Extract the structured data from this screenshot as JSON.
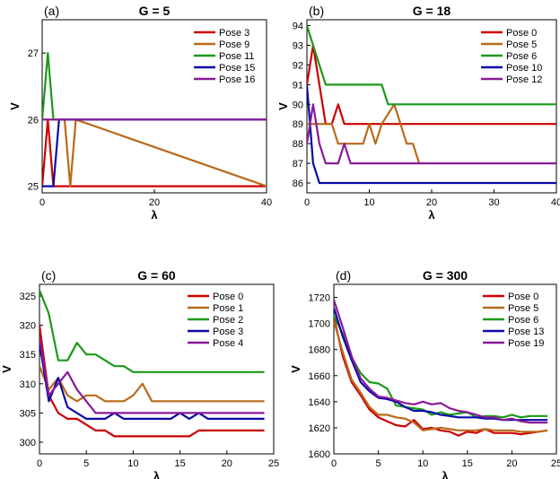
{
  "chart_data": [
    {
      "type": "line",
      "panel_label": "(a)",
      "title": "G = 5",
      "xlabel": "λ",
      "ylabel": "V",
      "xlim": [
        0,
        40
      ],
      "ylim": [
        24.9,
        27.5
      ],
      "xticks": [
        0,
        20,
        40
      ],
      "yticks": [
        25,
        26,
        27
      ],
      "legend_position": "top-right",
      "series": [
        {
          "name": "Pose 3",
          "color": "#cc0000",
          "x": [
            0,
            1,
            2,
            40
          ],
          "y": [
            25,
            26,
            25,
            25
          ]
        },
        {
          "name": "Pose 9",
          "color": "#b86a1a",
          "x": [
            0,
            4,
            5,
            6,
            40
          ],
          "y": [
            26,
            26,
            25,
            26,
            25
          ]
        },
        {
          "name": "Pose 11",
          "color": "#1a9a1a",
          "x": [
            0,
            1,
            2,
            40
          ],
          "y": [
            26,
            27,
            26,
            26
          ]
        },
        {
          "name": "Pose 15",
          "color": "#0a0aa8",
          "x": [
            0,
            2,
            3,
            40
          ],
          "y": [
            25,
            25,
            26,
            26
          ]
        },
        {
          "name": "Pose 16",
          "color": "#8a1a9a",
          "x": [
            0,
            40
          ],
          "y": [
            26,
            26
          ]
        }
      ]
    },
    {
      "type": "line",
      "panel_label": "(b)",
      "title": "G = 18",
      "xlabel": "λ",
      "ylabel": "V",
      "xlim": [
        0,
        40
      ],
      "ylim": [
        85.5,
        94.3
      ],
      "xticks": [
        0,
        10,
        20,
        30,
        40
      ],
      "yticks": [
        86,
        87,
        88,
        89,
        90,
        91,
        92,
        93,
        94
      ],
      "legend_position": "top-right",
      "series": [
        {
          "name": "Pose 0",
          "color": "#cc0000",
          "x": [
            0,
            1,
            2,
            3,
            4,
            5,
            6,
            40
          ],
          "y": [
            91,
            93,
            91,
            89,
            89,
            90,
            89,
            89
          ]
        },
        {
          "name": "Pose 5",
          "color": "#b86a1a",
          "x": [
            0,
            1,
            4,
            5,
            6,
            9,
            10,
            11,
            12,
            14,
            15,
            16,
            17,
            18
          ],
          "y": [
            89,
            89,
            89,
            88,
            88,
            88,
            89,
            88,
            89,
            90,
            89,
            88,
            88,
            87
          ]
        },
        {
          "name": "Pose 6",
          "color": "#1a9a1a",
          "x": [
            0,
            1,
            3,
            12,
            13,
            40
          ],
          "y": [
            94,
            93,
            91,
            91,
            90,
            90
          ]
        },
        {
          "name": "Pose 10",
          "color": "#0a0aa8",
          "x": [
            0,
            1,
            2,
            40
          ],
          "y": [
            91,
            87,
            86,
            86
          ]
        },
        {
          "name": "Pose 12",
          "color": "#8a1a9a",
          "x": [
            0,
            1,
            2,
            3,
            5,
            6,
            7,
            40
          ],
          "y": [
            88,
            90,
            88,
            87,
            87,
            88,
            87,
            87
          ]
        }
      ]
    },
    {
      "type": "line",
      "panel_label": "(c)",
      "title": "G = 60",
      "xlabel": "λ",
      "ylabel": "V",
      "xlim": [
        0,
        25
      ],
      "ylim": [
        298,
        327
      ],
      "xticks": [
        0,
        5,
        10,
        15,
        20,
        25
      ],
      "yticks": [
        300,
        305,
        310,
        315,
        320,
        325
      ],
      "legend_position": "top-right",
      "series": [
        {
          "name": "Pose 0",
          "color": "#cc0000",
          "x": [
            0,
            1,
            2,
            3,
            4,
            5,
            6,
            7,
            8,
            9,
            10,
            11,
            12,
            13,
            14,
            15,
            16,
            17,
            18,
            19,
            20,
            21,
            22,
            23,
            24
          ],
          "y": [
            320,
            308,
            305,
            304,
            304,
            303,
            302,
            302,
            301,
            301,
            301,
            301,
            301,
            301,
            301,
            301,
            301,
            302,
            302,
            302,
            302,
            302,
            302,
            302,
            302
          ]
        },
        {
          "name": "Pose 1",
          "color": "#b86a1a",
          "x": [
            0,
            1,
            2,
            3,
            4,
            5,
            6,
            7,
            8,
            9,
            10,
            11,
            12,
            13,
            14,
            15,
            16,
            17,
            18,
            19,
            20,
            21,
            22,
            23,
            24
          ],
          "y": [
            313,
            309,
            311,
            308,
            307,
            308,
            308,
            307,
            307,
            307,
            308,
            310,
            307,
            307,
            307,
            307,
            307,
            307,
            307,
            307,
            307,
            307,
            307,
            307,
            307
          ]
        },
        {
          "name": "Pose 2",
          "color": "#1a9a1a",
          "x": [
            0,
            1,
            2,
            3,
            4,
            5,
            6,
            7,
            8,
            9,
            10,
            11,
            12,
            13,
            14,
            15,
            16,
            17,
            18,
            19,
            20,
            21,
            22,
            23,
            24
          ],
          "y": [
            326,
            322,
            314,
            314,
            317,
            315,
            315,
            314,
            313,
            313,
            312,
            312,
            312,
            312,
            312,
            312,
            312,
            312,
            312,
            312,
            312,
            312,
            312,
            312,
            312
          ]
        },
        {
          "name": "Pose 3",
          "color": "#0a0aa8",
          "x": [
            0,
            1,
            2,
            3,
            4,
            5,
            6,
            7,
            8,
            9,
            10,
            11,
            12,
            13,
            14,
            15,
            16,
            17,
            18,
            19,
            20,
            21,
            22,
            23,
            24
          ],
          "y": [
            317,
            307,
            311,
            306,
            305,
            304,
            304,
            304,
            305,
            304,
            304,
            304,
            304,
            304,
            304,
            305,
            304,
            305,
            304,
            304,
            304,
            304,
            304,
            304,
            304
          ]
        },
        {
          "name": "Pose 4",
          "color": "#8a1a9a",
          "x": [
            0,
            1,
            2,
            3,
            4,
            5,
            6,
            7,
            8,
            9,
            10,
            11,
            12,
            13,
            14,
            15,
            16,
            17,
            18,
            19,
            20,
            21,
            22,
            23,
            24
          ],
          "y": [
            318,
            308,
            310,
            312,
            309,
            307,
            305,
            305,
            305,
            305,
            305,
            305,
            305,
            305,
            305,
            305,
            305,
            305,
            305,
            305,
            305,
            305,
            305,
            305,
            305
          ]
        }
      ]
    },
    {
      "type": "line",
      "panel_label": "(d)",
      "title": "G = 300",
      "xlabel": "λ",
      "ylabel": "V",
      "xlim": [
        0,
        25
      ],
      "ylim": [
        1600,
        1730
      ],
      "xticks": [
        0,
        5,
        10,
        15,
        20,
        25
      ],
      "yticks": [
        1600,
        1620,
        1640,
        1660,
        1680,
        1700,
        1720
      ],
      "legend_position": "top-right",
      "series": [
        {
          "name": "Pose 0",
          "color": "#cc0000",
          "x": [
            0,
            1,
            2,
            3,
            4,
            5,
            6,
            7,
            8,
            9,
            10,
            11,
            12,
            13,
            14,
            15,
            16,
            17,
            18,
            19,
            20,
            21,
            22,
            23,
            24
          ],
          "y": [
            1705,
            1675,
            1655,
            1645,
            1634,
            1628,
            1625,
            1622,
            1621,
            1626,
            1619,
            1620,
            1618,
            1617,
            1614,
            1617,
            1616,
            1619,
            1616,
            1616,
            1616,
            1615,
            1616,
            1617,
            1618
          ]
        },
        {
          "name": "Pose 5",
          "color": "#b86a1a",
          "x": [
            0,
            1,
            2,
            3,
            4,
            5,
            6,
            7,
            8,
            9,
            10,
            11,
            12,
            13,
            14,
            15,
            16,
            17,
            18,
            19,
            20,
            21,
            22,
            23,
            24
          ],
          "y": [
            1702,
            1678,
            1657,
            1647,
            1636,
            1630,
            1630,
            1628,
            1627,
            1624,
            1618,
            1619,
            1620,
            1619,
            1618,
            1618,
            1618,
            1619,
            1618,
            1618,
            1618,
            1617,
            1617,
            1617,
            1618
          ]
        },
        {
          "name": "Pose 6",
          "color": "#1a9a1a",
          "x": [
            0,
            1,
            2,
            3,
            4,
            5,
            6,
            7,
            8,
            9,
            10,
            11,
            12,
            13,
            14,
            15,
            16,
            17,
            18,
            19,
            20,
            21,
            22,
            23,
            24
          ],
          "y": [
            1706,
            1692,
            1674,
            1662,
            1655,
            1654,
            1650,
            1637,
            1636,
            1635,
            1634,
            1630,
            1632,
            1630,
            1631,
            1632,
            1628,
            1629,
            1629,
            1628,
            1630,
            1628,
            1629,
            1629,
            1629
          ]
        },
        {
          "name": "Pose 13",
          "color": "#0a0aa8",
          "x": [
            0,
            1,
            2,
            3,
            4,
            5,
            6,
            7,
            8,
            9,
            10,
            11,
            12,
            13,
            14,
            15,
            16,
            17,
            18,
            19,
            20,
            21,
            22,
            23,
            24
          ],
          "y": [
            1712,
            1690,
            1672,
            1655,
            1648,
            1643,
            1642,
            1640,
            1636,
            1633,
            1633,
            1632,
            1630,
            1629,
            1628,
            1628,
            1628,
            1627,
            1627,
            1626,
            1626,
            1626,
            1626,
            1626,
            1626
          ]
        },
        {
          "name": "Pose 19",
          "color": "#8a1a9a",
          "x": [
            0,
            1,
            2,
            3,
            4,
            5,
            6,
            7,
            8,
            9,
            10,
            11,
            12,
            13,
            14,
            15,
            16,
            17,
            18,
            19,
            20,
            21,
            22,
            23,
            24
          ],
          "y": [
            1718,
            1697,
            1675,
            1658,
            1650,
            1644,
            1643,
            1641,
            1639,
            1638,
            1640,
            1638,
            1639,
            1635,
            1633,
            1632,
            1630,
            1628,
            1628,
            1626,
            1627,
            1625,
            1624,
            1624,
            1624
          ]
        }
      ]
    }
  ]
}
